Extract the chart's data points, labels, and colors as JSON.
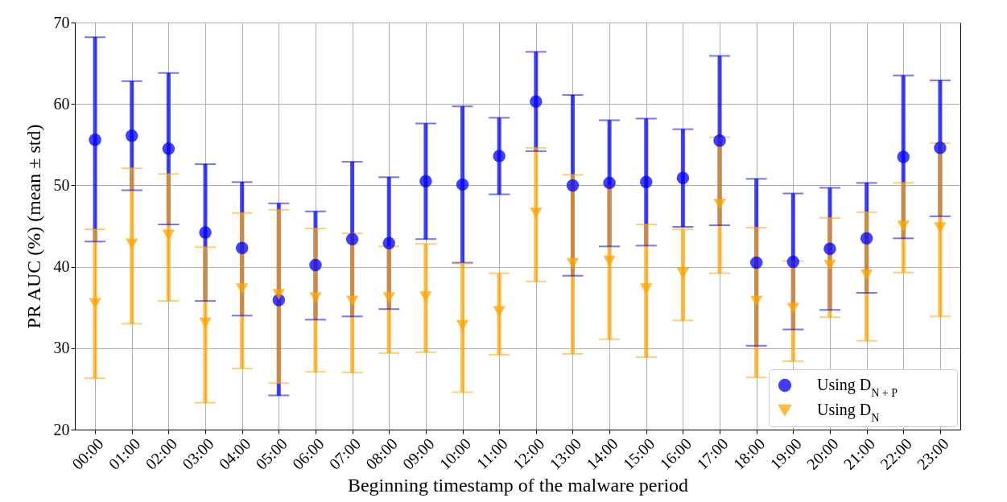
{
  "chart_data": {
    "type": "scatter",
    "xlabel": "Beginning timestamp of the malware period",
    "ylabel": "PR AUC (%) (mean ± std)",
    "categories": [
      "00:00",
      "01:00",
      "02:00",
      "03:00",
      "04:00",
      "05:00",
      "06:00",
      "07:00",
      "08:00",
      "09:00",
      "10:00",
      "11:00",
      "12:00",
      "13:00",
      "14:00",
      "15:00",
      "16:00",
      "17:00",
      "18:00",
      "19:00",
      "20:00",
      "21:00",
      "22:00",
      "23:00"
    ],
    "ylim": [
      20,
      70
    ],
    "yticks": [
      20,
      30,
      40,
      50,
      60,
      70
    ],
    "grid": true,
    "legend": "bottom right",
    "series": [
      {
        "name": "Using D$_{N + P}$",
        "color": "#0000ff",
        "marker": "circle",
        "values": [
          55.6,
          56.1,
          54.5,
          44.2,
          42.3,
          35.9,
          40.2,
          43.4,
          42.9,
          50.5,
          50.1,
          53.6,
          60.3,
          50.0,
          50.3,
          50.4,
          50.9,
          55.5,
          40.5,
          40.6,
          42.2,
          43.5,
          53.5,
          54.6
        ],
        "errors": [
          [
            43.1,
            68.2
          ],
          [
            49.4,
            62.8
          ],
          [
            45.2,
            63.8
          ],
          [
            35.8,
            52.6
          ],
          [
            34.0,
            50.4
          ],
          [
            24.2,
            47.8
          ],
          [
            33.5,
            46.8
          ],
          [
            33.9,
            52.9
          ],
          [
            34.8,
            51.0
          ],
          [
            43.4,
            57.6
          ],
          [
            40.5,
            59.7
          ],
          [
            48.9,
            58.3
          ],
          [
            54.2,
            66.4
          ],
          [
            38.9,
            61.1
          ],
          [
            42.5,
            58.0
          ],
          [
            42.6,
            58.2
          ],
          [
            44.9,
            56.9
          ],
          [
            45.1,
            65.9
          ],
          [
            30.3,
            50.8
          ],
          [
            32.3,
            49.0
          ],
          [
            34.7,
            49.7
          ],
          [
            36.8,
            50.3
          ],
          [
            43.5,
            63.5
          ],
          [
            46.2,
            62.9
          ]
        ]
      },
      {
        "name": "Using D$_{N}$",
        "color": "#ffa500",
        "marker": "triangle-down",
        "values": [
          35.5,
          42.8,
          43.9,
          33.1,
          37.3,
          36.6,
          36.2,
          35.8,
          36.2,
          36.3,
          32.8,
          34.5,
          46.6,
          40.4,
          40.7,
          37.3,
          39.2,
          47.7,
          35.8,
          34.9,
          40.2,
          39.0,
          45.0,
          44.8
        ],
        "errors": [
          [
            26.3,
            44.6
          ],
          [
            33.0,
            52.1
          ],
          [
            35.8,
            51.4
          ],
          [
            23.3,
            42.4
          ],
          [
            27.5,
            46.6
          ],
          [
            25.7,
            47.0
          ],
          [
            27.1,
            44.7
          ],
          [
            27.0,
            44.1
          ],
          [
            29.4,
            42.5
          ],
          [
            29.5,
            42.8
          ],
          [
            24.6,
            40.4
          ],
          [
            29.2,
            39.2
          ],
          [
            38.2,
            54.6
          ],
          [
            29.3,
            51.3
          ],
          [
            31.1,
            50.0
          ],
          [
            28.9,
            45.2
          ],
          [
            33.4,
            44.6
          ],
          [
            39.2,
            55.9
          ],
          [
            26.4,
            44.8
          ],
          [
            28.4,
            40.7
          ],
          [
            33.8,
            46.0
          ],
          [
            30.9,
            46.7
          ],
          [
            39.3,
            50.3
          ],
          [
            33.9,
            55.2
          ]
        ]
      }
    ]
  }
}
